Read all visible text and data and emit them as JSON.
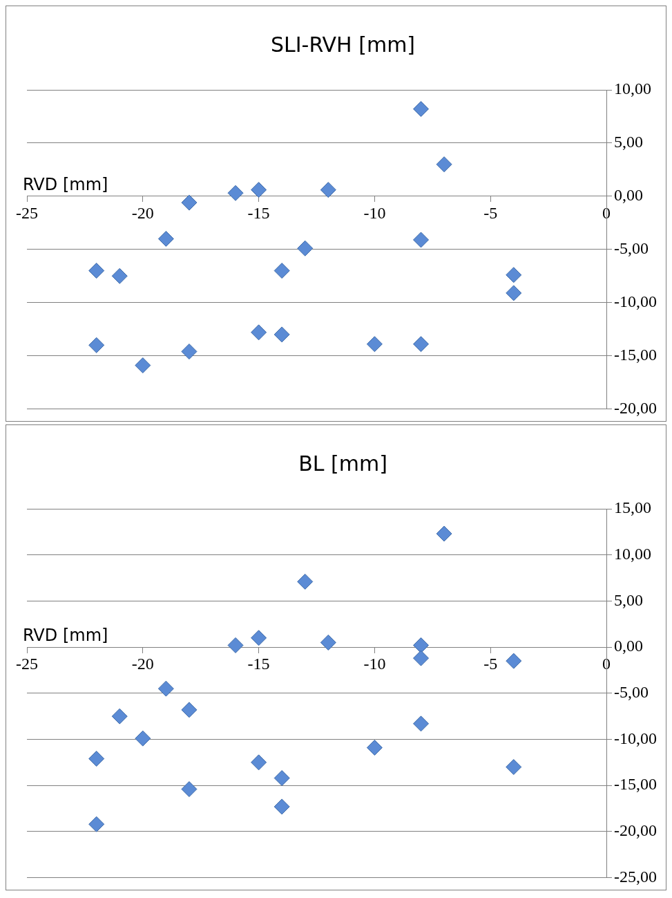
{
  "chart_data": [
    {
      "type": "scatter",
      "title": "SLI-RVH [mm]",
      "xlabel": "RVD [mm]",
      "color": "#5b8bd5",
      "marker": "diamond",
      "grid": "y",
      "legend": false,
      "x": [
        -8,
        -7,
        -18,
        -16,
        -15,
        -12,
        -19,
        -13,
        -8,
        -22,
        -21,
        -14,
        -4,
        -4,
        -22,
        -20,
        -18,
        -15,
        -14,
        -10,
        -8
      ],
      "values": [
        8.2,
        3.0,
        -0.6,
        0.3,
        0.6,
        0.6,
        -4.0,
        -4.9,
        -4.1,
        -7.0,
        -7.5,
        -7.0,
        -7.4,
        -9.1,
        -14.0,
        -15.9,
        -14.6,
        -12.8,
        -13.0,
        -13.9,
        -13.9
      ],
      "xlim": [
        -25,
        0
      ],
      "xticks": [
        -25,
        -20,
        -15,
        -10,
        -5,
        0
      ],
      "ylim": [
        -20,
        10
      ],
      "yticks": [
        {
          "value": -20,
          "label": "-20,00"
        },
        {
          "value": -15,
          "label": "-15,00"
        },
        {
          "value": -10,
          "label": "-10,00"
        },
        {
          "value": -5,
          "label": "-5,00"
        },
        {
          "value": 0,
          "label": "0,00"
        },
        {
          "value": 5,
          "label": "5,00"
        },
        {
          "value": 10,
          "label": "10,00"
        }
      ]
    },
    {
      "type": "scatter",
      "title": "BL [mm]",
      "xlabel": "RVD [mm]",
      "color": "#5b8bd5",
      "marker": "diamond",
      "grid": "y",
      "legend": false,
      "x": [
        -7,
        -13,
        -16,
        -15,
        -12,
        -8,
        -8,
        -4,
        -19,
        -21,
        -18,
        -20,
        -8,
        -10,
        -22,
        -15,
        -14,
        -18,
        -14,
        -22,
        -4
      ],
      "values": [
        12.3,
        7.1,
        0.2,
        1.0,
        0.5,
        0.2,
        -1.2,
        -1.5,
        -4.5,
        -7.5,
        -6.8,
        -9.9,
        -8.3,
        -10.9,
        -12.1,
        -12.5,
        -14.2,
        -15.4,
        -17.3,
        -19.2,
        -13.0
      ],
      "xlim": [
        -25,
        0
      ],
      "xticks": [
        -25,
        -20,
        -15,
        -10,
        -5,
        0
      ],
      "ylim": [
        -25,
        15
      ],
      "yticks": [
        {
          "value": -25,
          "label": "-25,00"
        },
        {
          "value": -20,
          "label": "-20,00"
        },
        {
          "value": -15,
          "label": "-15,00"
        },
        {
          "value": -10,
          "label": "-10,00"
        },
        {
          "value": -5,
          "label": "-5,00"
        },
        {
          "value": 0,
          "label": "0,00"
        },
        {
          "value": 5,
          "label": "5,00"
        },
        {
          "value": 10,
          "label": "10,00"
        },
        {
          "value": 15,
          "label": "15,00"
        }
      ]
    }
  ]
}
